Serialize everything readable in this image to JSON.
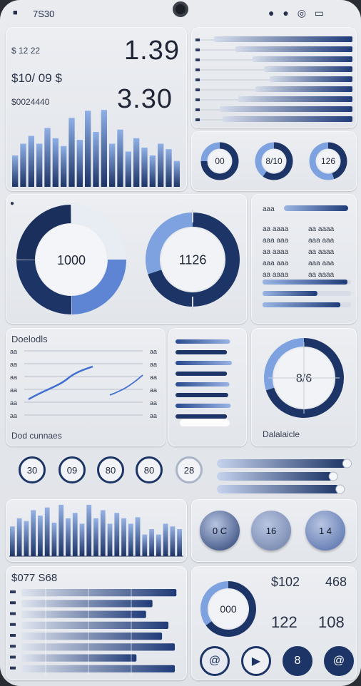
{
  "status": {
    "time": "7S30"
  },
  "top_left": {
    "row1_label": "$ 12 22",
    "big1": "1.39",
    "row2_label": "$10/ 09 $",
    "row3_label": "$0024440",
    "big2": "3.30",
    "bars": [
      0.4,
      0.55,
      0.65,
      0.55,
      0.75,
      0.62,
      0.52,
      0.88,
      0.6,
      0.97,
      0.7,
      0.98,
      0.55,
      0.73,
      0.45,
      0.62,
      0.5,
      0.4,
      0.55,
      0.48,
      0.33
    ]
  },
  "top_right_bars": [
    0.97,
    0.82,
    0.7,
    0.62,
    0.58,
    0.68,
    0.8,
    0.93,
    0.91
  ],
  "small_rings": [
    {
      "label": "00",
      "fill": 0.75
    },
    {
      "label": "8/10",
      "fill": 0.6
    },
    {
      "label": "126",
      "fill": 0.45
    }
  ],
  "donut1": {
    "label": "1000",
    "segments": [
      0.25,
      0.25,
      0.25,
      0.25
    ]
  },
  "donut2": {
    "label": "1126",
    "fill": 0.7
  },
  "list_panel": {
    "header": "aaa",
    "rows": [
      "aa aaaa",
      "aaa aaa",
      "aa aaaa",
      "aaa aaa",
      "aa aaaa"
    ],
    "progress": [
      0.96,
      0.62,
      0.88
    ]
  },
  "line_panel": {
    "title": "Doelodls",
    "footer": "Dod cunnaes",
    "y_labels": [
      "aa",
      "aa",
      "aa",
      "aa",
      "aa",
      "aa"
    ]
  },
  "bar_list": [
    0.75,
    0.7,
    0.78,
    0.7,
    0.74,
    0.72,
    0.76,
    0.7
  ],
  "big_ring": {
    "label": "8/6",
    "fill": 0.7,
    "caption": "Dalalaicle"
  },
  "ring_row": [
    "30",
    "09",
    "80",
    "80",
    "28"
  ],
  "sliders": [
    0.95,
    0.85,
    0.9
  ],
  "bars2": [
    0.55,
    0.7,
    0.65,
    0.85,
    0.75,
    0.9,
    0.62,
    0.95,
    0.7,
    0.8,
    0.6,
    0.95,
    0.7,
    0.85,
    0.6,
    0.8,
    0.7,
    0.6,
    0.72,
    0.4,
    0.5,
    0.4,
    0.6,
    0.55,
    0.5
  ],
  "buttons_row1": [
    "0 C",
    "16",
    "1 4"
  ],
  "bottom_left": {
    "label": "$077 S68",
    "bars": [
      0.97,
      0.82,
      0.78,
      0.92,
      0.88,
      0.96,
      0.72,
      0.96
    ]
  },
  "bottom_right": {
    "ring": "000",
    "val1": "$102",
    "val2": "468",
    "val3": "122",
    "val4": "108"
  },
  "bottom_buttons": [
    "@",
    "▶",
    "8",
    "@"
  ]
}
